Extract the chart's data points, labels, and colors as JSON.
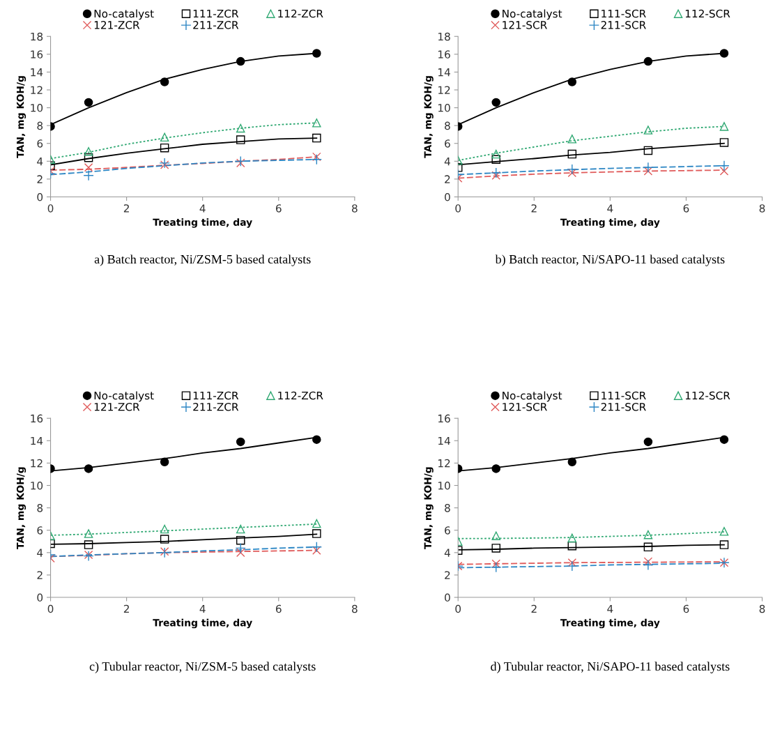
{
  "chart_data": [
    {
      "type": "scatter",
      "xlabel": "Treating time, day",
      "ylabel": "TAN, mg KOH/g",
      "annotations": [
        "a) Batch reactor, Ni/ZSM-5 based catalysts"
      ],
      "xlim": [
        0,
        8
      ],
      "ylim": [
        0,
        18
      ],
      "xticks": [
        0,
        2,
        4,
        6,
        8
      ],
      "yticks": [
        0,
        2,
        4,
        6,
        8,
        10,
        12,
        14,
        16,
        18
      ],
      "grid": false,
      "legend": "top",
      "x": [
        0,
        1,
        3,
        5,
        7
      ],
      "series": [
        {
          "name": "No-catalyst",
          "color": "#000000",
          "marker": "circle",
          "values": [
            7.9,
            10.6,
            12.9,
            15.2,
            16.1
          ]
        },
        {
          "name": "111-ZCR",
          "color": "#000000",
          "marker": "square",
          "values": [
            3.5,
            4.4,
            5.5,
            6.4,
            6.6
          ]
        },
        {
          "name": "112-ZCR",
          "color": "#2fa872",
          "marker": "triangle",
          "values": [
            4.2,
            5.1,
            6.7,
            7.7,
            8.3
          ]
        },
        {
          "name": "121-ZCR",
          "color": "#e05a5a",
          "marker": "x",
          "values": [
            2.9,
            3.3,
            3.6,
            3.8,
            4.5
          ]
        },
        {
          "name": "211-ZCR",
          "color": "#2c86c4",
          "marker": "cross",
          "values": [
            2.6,
            2.4,
            3.8,
            4.0,
            4.2
          ]
        },
        {
          "type": "line",
          "color": "#000000",
          "line_style": "solid",
          "x": [
            0,
            1,
            2,
            3,
            4,
            5,
            6,
            7
          ],
          "values": [
            8.1,
            10.0,
            11.7,
            13.2,
            14.3,
            15.2,
            15.8,
            16.1
          ]
        },
        {
          "type": "line",
          "color": "#000000",
          "line_style": "solid",
          "x": [
            0,
            1,
            2,
            3,
            4,
            5,
            6,
            7
          ],
          "values": [
            3.6,
            4.3,
            4.9,
            5.4,
            5.9,
            6.2,
            6.5,
            6.6
          ]
        },
        {
          "type": "line",
          "color": "#2fa872",
          "line_style": "dotted",
          "x": [
            0,
            1,
            2,
            3,
            4,
            5,
            6,
            7
          ],
          "values": [
            4.3,
            5.0,
            5.9,
            6.6,
            7.2,
            7.7,
            8.1,
            8.3
          ]
        },
        {
          "type": "line",
          "color": "#e05a5a",
          "line_style": "dashed",
          "x": [
            0,
            1,
            2,
            3,
            4,
            5,
            6,
            7
          ],
          "values": [
            3.0,
            3.1,
            3.3,
            3.55,
            3.75,
            4.0,
            4.2,
            4.5
          ]
        },
        {
          "type": "line",
          "color": "#2c86c4",
          "line_style": "dashed",
          "x": [
            0,
            1,
            2,
            3,
            4,
            5,
            6,
            7
          ],
          "values": [
            2.5,
            2.8,
            3.2,
            3.5,
            3.8,
            4.0,
            4.1,
            4.2
          ]
        }
      ]
    },
    {
      "type": "scatter",
      "xlabel": "Treating time, day",
      "ylabel": "TAN, mg KOH/g",
      "annotations": [
        "b) Batch reactor, Ni/SAPO-11 based catalysts"
      ],
      "xlim": [
        0,
        8
      ],
      "ylim": [
        0,
        18
      ],
      "xticks": [
        0,
        2,
        4,
        6,
        8
      ],
      "yticks": [
        0,
        2,
        4,
        6,
        8,
        10,
        12,
        14,
        16,
        18
      ],
      "grid": false,
      "legend": "top",
      "x": [
        0,
        1,
        3,
        5,
        7
      ],
      "series": [
        {
          "name": "No-catalyst",
          "color": "#000000",
          "marker": "circle",
          "values": [
            7.9,
            10.6,
            12.9,
            15.2,
            16.1
          ]
        },
        {
          "name": "111-SCR",
          "color": "#000000",
          "marker": "square",
          "values": [
            3.3,
            4.2,
            4.8,
            5.2,
            6.1
          ]
        },
        {
          "name": "112-SCR",
          "color": "#2fa872",
          "marker": "triangle",
          "values": [
            4.1,
            4.8,
            6.5,
            7.5,
            7.9
          ]
        },
        {
          "name": "121-SCR",
          "color": "#e05a5a",
          "marker": "x",
          "values": [
            2.1,
            2.4,
            2.7,
            2.9,
            2.9
          ]
        },
        {
          "name": "211-SCR",
          "color": "#2c86c4",
          "marker": "cross",
          "values": [
            2.5,
            2.7,
            3.1,
            3.3,
            3.5
          ]
        },
        {
          "type": "line",
          "color": "#000000",
          "line_style": "solid",
          "x": [
            0,
            1,
            2,
            3,
            4,
            5,
            6,
            7
          ],
          "values": [
            8.1,
            10.0,
            11.7,
            13.2,
            14.3,
            15.2,
            15.8,
            16.1
          ]
        },
        {
          "type": "line",
          "color": "#000000",
          "line_style": "solid",
          "x": [
            0,
            1,
            2,
            3,
            4,
            5,
            6,
            7
          ],
          "values": [
            3.6,
            3.95,
            4.3,
            4.7,
            5.0,
            5.4,
            5.7,
            6.0
          ]
        },
        {
          "type": "line",
          "color": "#2fa872",
          "line_style": "dotted",
          "x": [
            0,
            1,
            2,
            3,
            4,
            5,
            6,
            7
          ],
          "values": [
            4.1,
            4.9,
            5.6,
            6.3,
            6.8,
            7.3,
            7.7,
            7.9
          ]
        },
        {
          "type": "line",
          "color": "#e05a5a",
          "line_style": "dashed",
          "x": [
            0,
            1,
            2,
            3,
            4,
            5,
            6,
            7
          ],
          "values": [
            2.1,
            2.35,
            2.55,
            2.7,
            2.8,
            2.9,
            2.95,
            3.0
          ]
        },
        {
          "type": "line",
          "color": "#2c86c4",
          "line_style": "dashed",
          "x": [
            0,
            1,
            2,
            3,
            4,
            5,
            6,
            7
          ],
          "values": [
            2.5,
            2.7,
            2.9,
            3.05,
            3.2,
            3.3,
            3.4,
            3.5
          ]
        }
      ]
    },
    {
      "type": "scatter",
      "xlabel": "Treating time, day",
      "ylabel": "TAN, mg KOH/g",
      "annotations": [
        "c) Tubular reactor, Ni/ZSM-5 based catalysts"
      ],
      "xlim": [
        0,
        8
      ],
      "ylim": [
        0,
        16
      ],
      "xticks": [
        0,
        2,
        4,
        6,
        8
      ],
      "yticks": [
        0,
        2,
        4,
        6,
        8,
        10,
        12,
        14,
        16
      ],
      "grid": false,
      "legend": "top",
      "x": [
        0,
        1,
        3,
        5,
        7
      ],
      "series": [
        {
          "name": "No-catalyst",
          "color": "#000000",
          "marker": "circle",
          "values": [
            11.5,
            11.5,
            12.1,
            13.9,
            14.1
          ]
        },
        {
          "name": "111-ZCR",
          "color": "#000000",
          "marker": "square",
          "values": [
            4.8,
            4.7,
            5.2,
            5.1,
            5.7
          ]
        },
        {
          "name": "112-ZCR",
          "color": "#2fa872",
          "marker": "triangle",
          "values": [
            5.5,
            5.7,
            6.1,
            6.1,
            6.6
          ]
        },
        {
          "name": "121-ZCR",
          "color": "#e05a5a",
          "marker": "x",
          "values": [
            3.5,
            3.8,
            4.1,
            4.0,
            4.2
          ]
        },
        {
          "name": "211-ZCR",
          "color": "#2c86c4",
          "marker": "cross",
          "values": [
            3.8,
            3.7,
            4.0,
            4.4,
            4.5
          ]
        },
        {
          "type": "line",
          "color": "#000000",
          "line_style": "solid",
          "x": [
            0,
            1,
            2,
            3,
            4,
            5,
            6,
            7
          ],
          "values": [
            11.3,
            11.6,
            12.0,
            12.4,
            12.9,
            13.3,
            13.8,
            14.3
          ]
        },
        {
          "type": "line",
          "color": "#000000",
          "line_style": "solid",
          "x": [
            0,
            1,
            2,
            3,
            4,
            5,
            6,
            7
          ],
          "values": [
            4.75,
            4.8,
            4.9,
            5.0,
            5.15,
            5.3,
            5.45,
            5.65
          ]
        },
        {
          "type": "line",
          "color": "#2fa872",
          "line_style": "dotted",
          "x": [
            0,
            1,
            2,
            3,
            4,
            5,
            6,
            7
          ],
          "values": [
            5.55,
            5.65,
            5.8,
            5.95,
            6.1,
            6.25,
            6.4,
            6.55
          ]
        },
        {
          "type": "line",
          "color": "#e05a5a",
          "line_style": "dashed",
          "x": [
            0,
            1,
            2,
            3,
            4,
            5,
            6,
            7
          ],
          "values": [
            3.65,
            3.75,
            3.9,
            4.0,
            4.05,
            4.1,
            4.15,
            4.2
          ]
        },
        {
          "type": "line",
          "color": "#2c86c4",
          "line_style": "dashed",
          "x": [
            0,
            1,
            2,
            3,
            4,
            5,
            6,
            7
          ],
          "values": [
            3.65,
            3.8,
            3.9,
            4.0,
            4.15,
            4.25,
            4.4,
            4.5
          ]
        }
      ]
    },
    {
      "type": "scatter",
      "xlabel": "Treating time, day",
      "ylabel": "TAN, mg KOH/g",
      "annotations": [
        "d) Tubular reactor, Ni/SAPO-11 based catalysts"
      ],
      "xlim": [
        0,
        8
      ],
      "ylim": [
        0,
        16
      ],
      "xticks": [
        0,
        2,
        4,
        6,
        8
      ],
      "yticks": [
        0,
        2,
        4,
        6,
        8,
        10,
        12,
        14,
        16
      ],
      "grid": false,
      "legend": "top",
      "x": [
        0,
        1,
        3,
        5,
        7
      ],
      "series": [
        {
          "name": "No-catalyst",
          "color": "#000000",
          "marker": "circle",
          "values": [
            11.5,
            11.5,
            12.1,
            13.9,
            14.1
          ]
        },
        {
          "name": "111-SCR",
          "color": "#000000",
          "marker": "square",
          "values": [
            4.2,
            4.4,
            4.6,
            4.5,
            4.7
          ]
        },
        {
          "name": "112-SCR",
          "color": "#2fa872",
          "marker": "triangle",
          "values": [
            5.0,
            5.5,
            5.3,
            5.6,
            5.9
          ]
        },
        {
          "name": "121-SCR",
          "color": "#e05a5a",
          "marker": "x",
          "values": [
            2.8,
            3.0,
            3.1,
            3.2,
            3.1
          ]
        },
        {
          "name": "211-SCR",
          "color": "#2c86c4",
          "marker": "cross",
          "values": [
            2.8,
            2.7,
            2.8,
            2.9,
            3.1
          ]
        },
        {
          "type": "line",
          "color": "#000000",
          "line_style": "solid",
          "x": [
            0,
            1,
            2,
            3,
            4,
            5,
            6,
            7
          ],
          "values": [
            11.3,
            11.6,
            12.0,
            12.4,
            12.9,
            13.3,
            13.8,
            14.3
          ]
        },
        {
          "type": "line",
          "color": "#000000",
          "line_style": "solid",
          "x": [
            0,
            1,
            2,
            3,
            4,
            5,
            6,
            7
          ],
          "values": [
            4.25,
            4.3,
            4.4,
            4.45,
            4.5,
            4.55,
            4.65,
            4.7
          ]
        },
        {
          "type": "line",
          "color": "#2fa872",
          "line_style": "dotted",
          "x": [
            0,
            1,
            2,
            3,
            4,
            5,
            6,
            7
          ],
          "values": [
            5.25,
            5.27,
            5.3,
            5.35,
            5.45,
            5.55,
            5.7,
            5.85
          ]
        },
        {
          "type": "line",
          "color": "#e05a5a",
          "line_style": "dashed",
          "x": [
            0,
            1,
            2,
            3,
            4,
            5,
            6,
            7
          ],
          "values": [
            2.95,
            3.0,
            3.05,
            3.1,
            3.12,
            3.14,
            3.16,
            3.18
          ]
        },
        {
          "type": "line",
          "color": "#2c86c4",
          "line_style": "dashed",
          "x": [
            0,
            1,
            2,
            3,
            4,
            5,
            6,
            7
          ],
          "values": [
            2.65,
            2.7,
            2.75,
            2.8,
            2.9,
            2.95,
            3.0,
            3.05
          ]
        }
      ]
    }
  ]
}
